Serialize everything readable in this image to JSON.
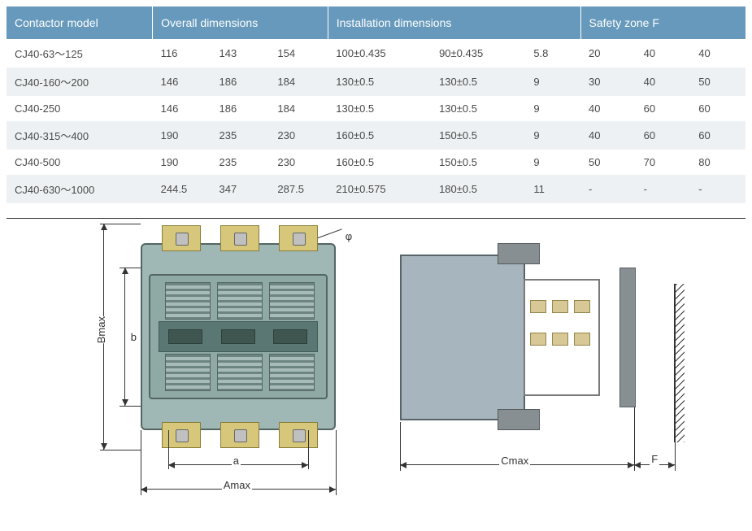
{
  "table": {
    "headers": {
      "model": "Contactor  model",
      "overall": "Overall dimensions",
      "install": "Installation dimensions",
      "safety": "Safety zone F"
    },
    "col_widths": [
      "170px",
      "68px",
      "68px",
      "68px",
      "120px",
      "110px",
      "64px",
      "64px",
      "64px",
      "64px"
    ],
    "header_bg": "#6699bb",
    "header_fg": "#ffffff",
    "row_alt_bg": "#eef1f3",
    "rows": [
      {
        "alt": false,
        "cells": [
          "CJ40-63～125",
          "116",
          "143",
          "154",
          "100±0.435",
          "90±0.435",
          "5.8",
          "20",
          "40",
          "40"
        ]
      },
      {
        "alt": true,
        "cells": [
          "CJ40-160～200",
          "146",
          "186",
          "184",
          "130±0.5",
          "130±0.5",
          "9",
          "30",
          "40",
          "50"
        ]
      },
      {
        "alt": false,
        "cells": [
          "CJ40-250",
          "146",
          "186",
          "184",
          "130±0.5",
          "130±0.5",
          "9",
          "40",
          "60",
          "60"
        ]
      },
      {
        "alt": true,
        "cells": [
          "CJ40-315～400",
          "190",
          "235",
          "230",
          "160±0.5",
          "150±0.5",
          "9",
          "40",
          "60",
          "60"
        ]
      },
      {
        "alt": false,
        "cells": [
          "CJ40-500",
          "190",
          "235",
          "230",
          "160±0.5",
          "150±0.5",
          "9",
          "50",
          "70",
          "80"
        ]
      },
      {
        "alt": true,
        "cells": [
          "CJ40-630～1000",
          "244.5",
          "347",
          "287.5",
          "210±0.575",
          "180±0.5",
          "11",
          "-",
          "-",
          "-"
        ]
      }
    ]
  },
  "diagram": {
    "labels": {
      "phi": "φ",
      "Bmax": "Bmax",
      "b": "b",
      "a": "a",
      "Amax": "Amax",
      "Cmax": "Cmax",
      "F": "F"
    },
    "colors": {
      "device_body": "#9fb8b5",
      "device_border": "#556662",
      "terminal": "#d6c77a",
      "side_body": "#a7b6be",
      "dim_line": "#333333"
    }
  }
}
